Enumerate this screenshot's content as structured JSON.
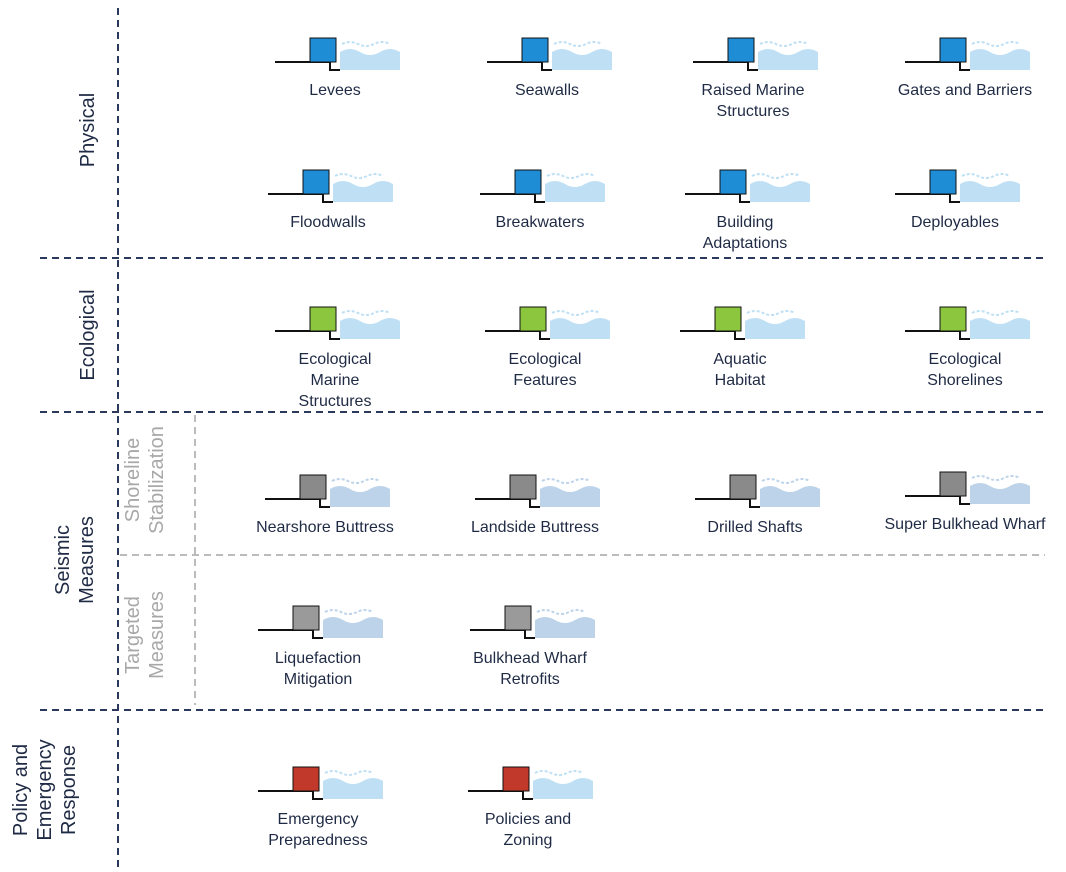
{
  "sections": [
    {
      "label": [
        "Physical"
      ],
      "items": [
        {
          "lines": [
            "Levees"
          ]
        },
        {
          "lines": [
            "Seawalls"
          ]
        },
        {
          "lines": [
            "Raised Marine",
            "Structures"
          ]
        },
        {
          "lines": [
            "Gates and Barriers"
          ]
        },
        {
          "lines": [
            "Floodwalls"
          ]
        },
        {
          "lines": [
            "Breakwaters"
          ]
        },
        {
          "lines": [
            "Building",
            "Adaptations"
          ]
        },
        {
          "lines": [
            "Deployables"
          ]
        }
      ]
    },
    {
      "label": [
        "Ecological"
      ],
      "items": [
        {
          "lines": [
            "Ecological",
            "Marine",
            "Structures"
          ]
        },
        {
          "lines": [
            "Ecological",
            "Features"
          ]
        },
        {
          "lines": [
            "Aquatic",
            "Habitat"
          ]
        },
        {
          "lines": [
            "Ecological",
            "Shorelines"
          ]
        }
      ]
    },
    {
      "label": [
        "Seismic",
        "Measures"
      ],
      "subsections": [
        {
          "label": [
            "Shoreline",
            "Stabilization"
          ],
          "items": [
            {
              "lines": [
                "Nearshore Buttress"
              ]
            },
            {
              "lines": [
                "Landside Buttress"
              ]
            },
            {
              "lines": [
                "Drilled Shafts"
              ]
            },
            {
              "lines": [
                "Super Bulkhead Wharf"
              ]
            }
          ]
        },
        {
          "label": [
            "Targeted",
            "Measures"
          ],
          "items": [
            {
              "lines": [
                "Liquefaction",
                "Mitigation"
              ]
            },
            {
              "lines": [
                "Bulkhead Wharf",
                "Retrofits"
              ]
            }
          ]
        }
      ]
    },
    {
      "label": [
        "Policy and",
        "Emergency",
        "Response"
      ],
      "items": [
        {
          "lines": [
            "Emergency",
            "Preparedness"
          ]
        },
        {
          "lines": [
            "Policies and",
            "Zoning"
          ]
        }
      ]
    }
  ]
}
